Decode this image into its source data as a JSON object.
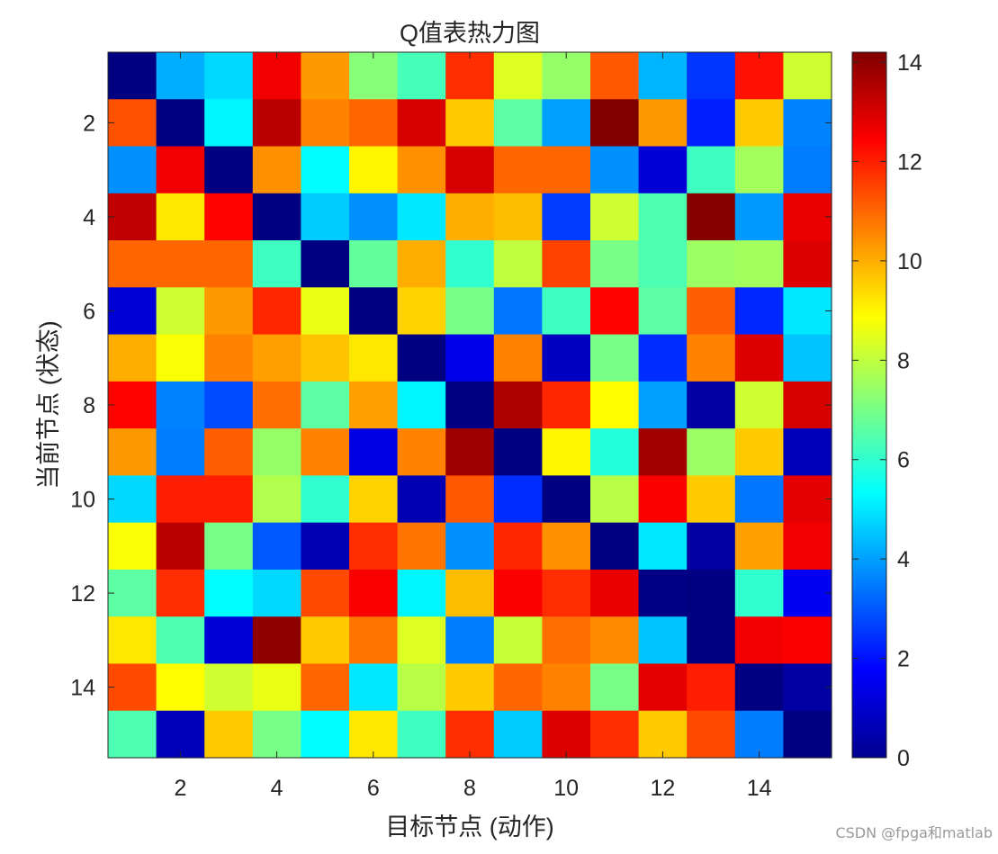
{
  "chart_data": {
    "type": "heatmap",
    "title": "Q值表热力图",
    "xlabel": "目标节点 (动作)",
    "ylabel": "当前节点 (状态)",
    "x_ticks": [
      2,
      4,
      6,
      8,
      10,
      12,
      14
    ],
    "y_ticks": [
      2,
      4,
      6,
      8,
      10,
      12,
      14
    ],
    "x_range": [
      1,
      15
    ],
    "y_range": [
      1,
      15
    ],
    "colormap": "jet",
    "colorbar": {
      "min": 0,
      "max": 14.2,
      "ticks": [
        0,
        2,
        4,
        6,
        8,
        10,
        12,
        14
      ],
      "placement": "right"
    },
    "grid": false,
    "values": [
      [
        0.0,
        4.2,
        4.8,
        12.6,
        10.3,
        7.2,
        6.3,
        11.8,
        8.4,
        7.4,
        11.2,
        4.3,
        2.5,
        12.2,
        8.2
      ],
      [
        11.3,
        0.0,
        5.2,
        13.4,
        10.6,
        11.0,
        13.0,
        9.6,
        6.6,
        4.0,
        14.2,
        10.3,
        2.2,
        9.6,
        3.6
      ],
      [
        3.8,
        12.6,
        0.0,
        10.4,
        5.3,
        9.0,
        10.4,
        13.0,
        11.0,
        11.0,
        3.8,
        1.2,
        6.2,
        7.6,
        3.5
      ],
      [
        13.3,
        9.2,
        12.4,
        0.0,
        4.6,
        3.8,
        5.0,
        10.0,
        9.8,
        2.6,
        8.2,
        6.4,
        14.1,
        3.9,
        12.7
      ],
      [
        11.0,
        11.0,
        11.0,
        6.2,
        0.0,
        6.7,
        10.0,
        6.0,
        8.0,
        11.5,
        7.0,
        6.4,
        7.5,
        7.6,
        12.9
      ],
      [
        1.2,
        8.2,
        10.3,
        11.9,
        8.6,
        0.0,
        9.5,
        7.0,
        3.4,
        6.2,
        12.4,
        6.6,
        11.1,
        2.3,
        5.0
      ],
      [
        10.0,
        8.8,
        10.6,
        10.2,
        9.7,
        9.2,
        0.0,
        1.5,
        10.6,
        0.9,
        7.0,
        2.4,
        10.6,
        12.9,
        4.5
      ],
      [
        12.4,
        3.6,
        2.8,
        10.9,
        6.6,
        10.2,
        5.2,
        0.0,
        13.6,
        11.9,
        8.9,
        4.0,
        0.5,
        8.2,
        13.0
      ],
      [
        10.3,
        3.5,
        11.1,
        7.4,
        10.6,
        1.4,
        10.6,
        13.8,
        0.0,
        9.0,
        5.8,
        13.7,
        7.5,
        9.6,
        0.8
      ],
      [
        4.8,
        12.0,
        12.0,
        7.8,
        6.0,
        9.5,
        0.7,
        11.2,
        2.4,
        0.0,
        7.9,
        12.5,
        9.6,
        3.4,
        12.8
      ],
      [
        8.8,
        13.4,
        7.0,
        3.0,
        0.7,
        11.8,
        10.8,
        3.8,
        11.9,
        10.4,
        0.0,
        5.0,
        0.5,
        10.2,
        12.6
      ],
      [
        6.6,
        11.8,
        5.3,
        4.8,
        11.4,
        12.5,
        5.2,
        9.8,
        12.5,
        11.8,
        12.7,
        0.1,
        0.0,
        6.0,
        1.6
      ],
      [
        9.2,
        6.4,
        1.2,
        14.0,
        9.6,
        10.8,
        8.4,
        3.5,
        8.1,
        10.9,
        10.5,
        4.5,
        0.0,
        12.6,
        12.5
      ],
      [
        11.4,
        8.9,
        8.2,
        8.6,
        11.0,
        5.0,
        7.9,
        9.6,
        11.0,
        10.6,
        7.0,
        12.8,
        12.0,
        0.0,
        0.5
      ],
      [
        6.4,
        0.8,
        9.6,
        7.0,
        5.3,
        9.2,
        6.2,
        11.8,
        4.6,
        12.9,
        11.8,
        9.6,
        11.4,
        3.5,
        0.0
      ]
    ]
  },
  "watermark": "CSDN @fpga和matlab"
}
